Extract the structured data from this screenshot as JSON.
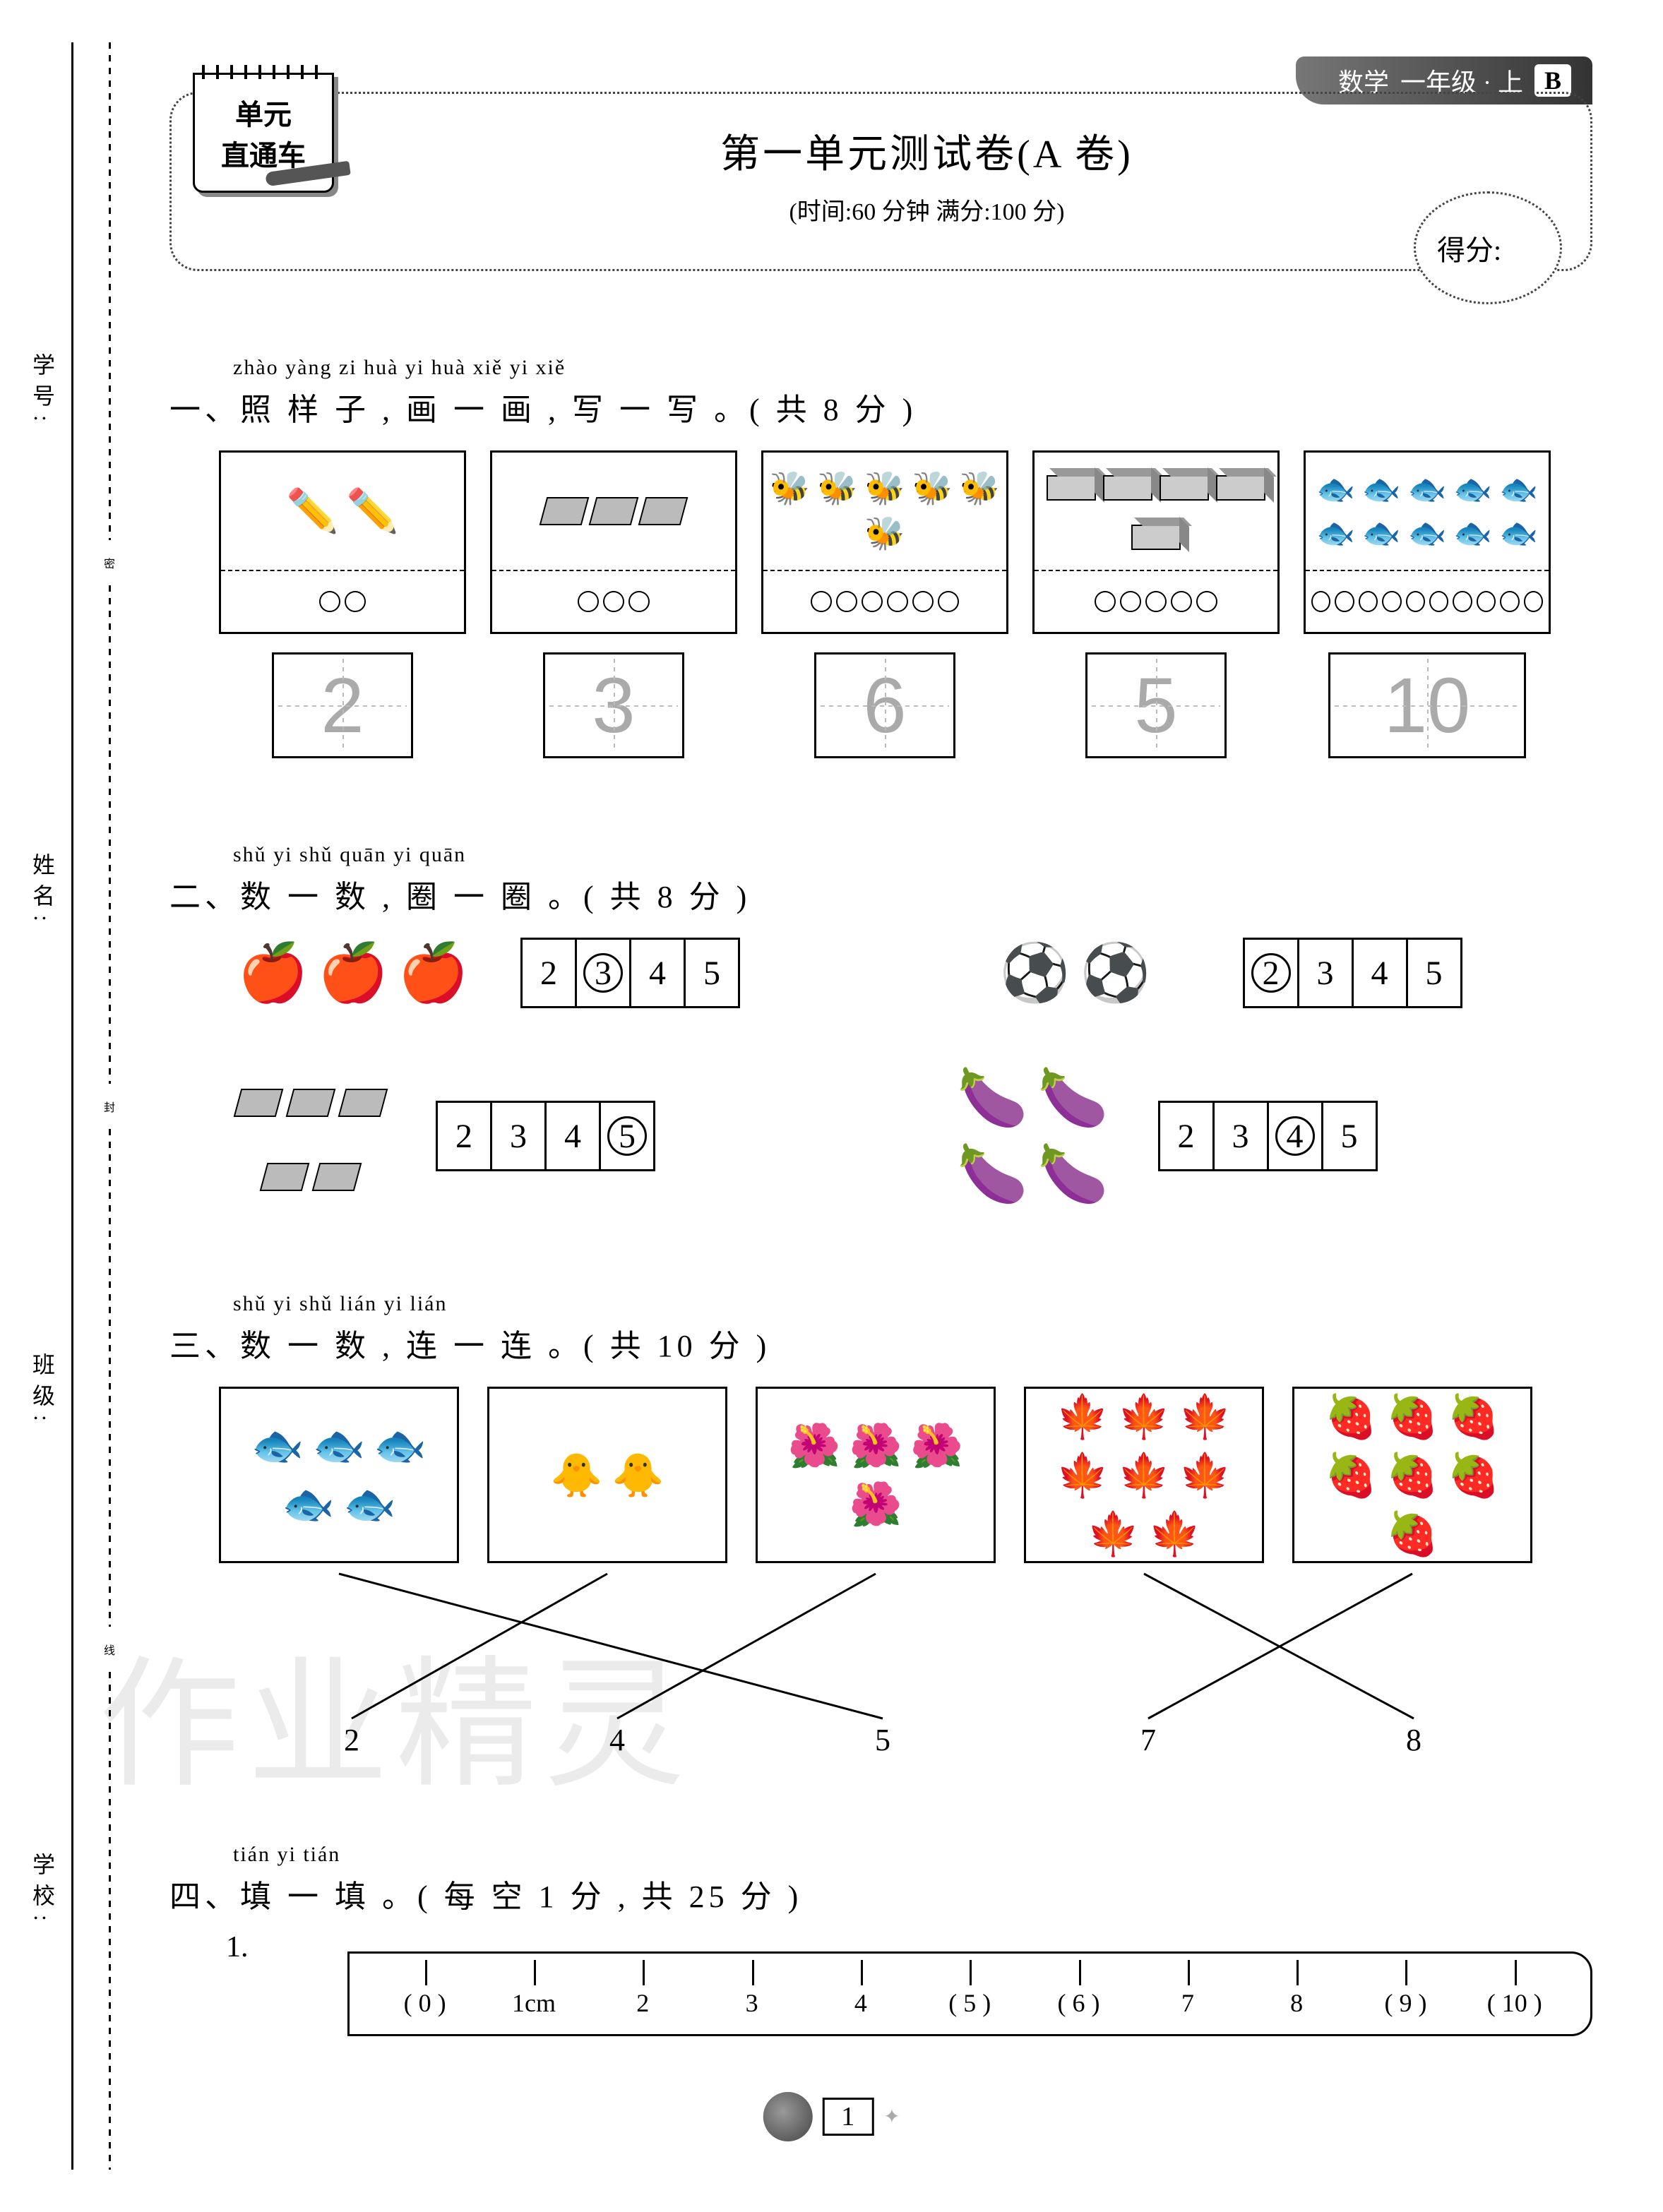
{
  "page_bg": "#ffffff",
  "text_color": "#000000",
  "header": {
    "subject": "数学",
    "grade": "一年级 · 上",
    "version": "B",
    "notepad_line1": "单元",
    "notepad_line2": "直通车",
    "title": "第一单元测试卷(A 卷)",
    "subtitle": "(时间:60 分钟  满分:100 分)",
    "score_label": "得分:"
  },
  "binding": {
    "labels_vert": [
      "学号:",
      "姓名:",
      "班级:",
      "学校:"
    ],
    "seal": [
      "密",
      "封",
      "线"
    ]
  },
  "q1": {
    "pinyin": "zhào yàng zi   huà yi huà   xiě yi xiě",
    "heading": "一、照  样  子 , 画 一 画 , 写 一 写 。( 共 8 分 )",
    "cards": [
      {
        "icon": "pencil-pair",
        "count": 2,
        "circles": 2,
        "number": "2"
      },
      {
        "icon": "eraser",
        "count": 3,
        "circles": 3,
        "number": "3"
      },
      {
        "icon": "bee",
        "count": 6,
        "circles": 6,
        "number": "6"
      },
      {
        "icon": "block",
        "count": 5,
        "circles": 5,
        "number": "5"
      },
      {
        "icon": "fish",
        "count": 10,
        "circles": 10,
        "number": "10"
      }
    ]
  },
  "q2": {
    "pinyin": "shǔ yi shǔ   quān yi quān",
    "heading": "二、数 一 数 , 圈  一  圈  。( 共 8 分 )",
    "rows": [
      {
        "icon": "apple",
        "count": 3,
        "options": [
          "2",
          "3",
          "4",
          "5"
        ],
        "circled_index": 1
      },
      {
        "icon": "soccer",
        "count": 2,
        "options": [
          "2",
          "3",
          "4",
          "5"
        ],
        "circled_index": 0
      },
      {
        "icon": "eraser",
        "count": 5,
        "options": [
          "2",
          "3",
          "4",
          "5"
        ],
        "circled_index": 3
      },
      {
        "icon": "eggplant",
        "count": 4,
        "options": [
          "2",
          "3",
          "4",
          "5"
        ],
        "circled_index": 2
      }
    ]
  },
  "q3": {
    "pinyin": "shǔ yi shǔ   lián yi lián",
    "heading": "三、数 一 数 , 连 一 连 。( 共 10 分 )",
    "cards": [
      {
        "icon": "fish",
        "count": 5
      },
      {
        "icon": "chick",
        "count": 2
      },
      {
        "icon": "flower",
        "count": 4
      },
      {
        "icon": "leaf",
        "count": 8
      },
      {
        "icon": "strawberry",
        "count": 7
      }
    ],
    "numbers": [
      "2",
      "4",
      "5",
      "7",
      "8"
    ],
    "connections": [
      {
        "from_card": 0,
        "to_number_index": 2
      },
      {
        "from_card": 1,
        "to_number_index": 0
      },
      {
        "from_card": 2,
        "to_number_index": 1
      },
      {
        "from_card": 3,
        "to_number_index": 4
      },
      {
        "from_card": 4,
        "to_number_index": 3
      }
    ]
  },
  "q4": {
    "pinyin": "tián yi tián",
    "heading": "四、填 一 填 。( 每 空 1 分 , 共 25 分 )",
    "item_label": "1.",
    "ruler_marks": [
      "( 0 )",
      "1cm",
      "2",
      "3",
      "4",
      "( 5 )",
      "( 6 )",
      "7",
      "8",
      "( 9 )",
      "( 10 )"
    ]
  },
  "footer": {
    "page": "1"
  },
  "watermark": "作业精灵"
}
